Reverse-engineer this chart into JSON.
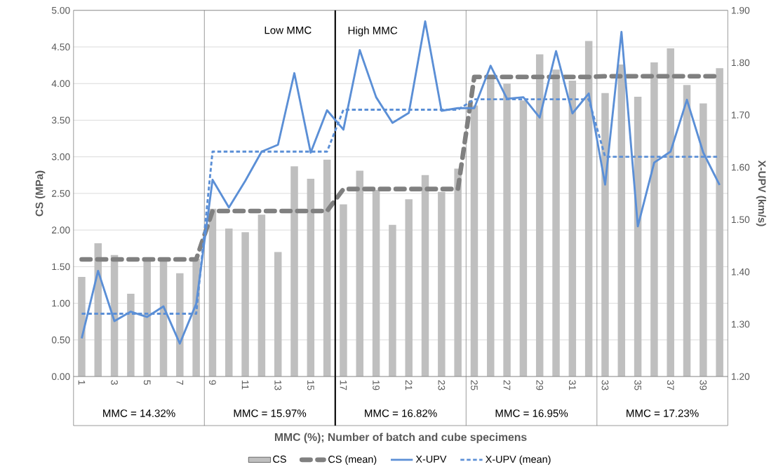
{
  "chart_data": {
    "type": "bar",
    "xlabel": "MMC (%); Number of batch and cube specimens",
    "ylabel": "CS (MPa)",
    "y2label": "X-UPV (km/s)",
    "categories": [
      "1",
      null,
      "3",
      null,
      "5",
      null,
      "7",
      null,
      "9",
      null,
      "11",
      null,
      "13",
      null,
      "15",
      null,
      "17",
      null,
      "19",
      null,
      "21",
      null,
      "23",
      null,
      "25",
      null,
      "27",
      null,
      "29",
      null,
      "31",
      null,
      "33",
      null,
      "35",
      null,
      "37",
      null,
      "39",
      null
    ],
    "series": [
      {
        "name": "CS",
        "color": "#bfbfbf",
        "values": [
          1.36,
          1.82,
          1.66,
          1.13,
          1.61,
          1.59,
          1.41,
          1.61,
          2.29,
          2.02,
          1.97,
          2.21,
          1.7,
          2.87,
          2.7,
          2.96,
          2.35,
          2.81,
          2.55,
          2.07,
          2.42,
          2.75,
          2.52,
          2.84,
          3.7,
          4.06,
          4.0,
          3.77,
          4.4,
          4.19,
          4.04,
          4.58,
          3.87,
          4.26,
          3.82,
          4.29,
          4.48,
          3.98,
          3.73,
          4.21
        ]
      },
      {
        "name": "CS  (mean)",
        "type": "line",
        "line_style": "dashed",
        "color": "#808080",
        "values": [
          1.6,
          1.6,
          1.6,
          1.6,
          1.6,
          1.6,
          1.6,
          1.6,
          2.26,
          2.26,
          2.26,
          2.26,
          2.26,
          2.26,
          2.26,
          2.26,
          2.56,
          2.56,
          2.56,
          2.56,
          2.56,
          2.56,
          2.56,
          2.56,
          4.09,
          4.09,
          4.09,
          4.09,
          4.09,
          4.09,
          4.09,
          4.09,
          4.1,
          4.1,
          4.1,
          4.1,
          4.1,
          4.1,
          4.1,
          4.1
        ]
      },
      {
        "name": "X-UPV",
        "type": "line",
        "axis": "y2",
        "line_style": "solid",
        "color": "#5b8fd6",
        "values": [
          1.273,
          1.402,
          1.306,
          1.324,
          1.314,
          1.334,
          1.263,
          1.339,
          1.576,
          1.523,
          1.574,
          1.63,
          1.643,
          1.78,
          1.628,
          1.709,
          1.672,
          1.824,
          1.734,
          1.685,
          1.704,
          1.879,
          1.708,
          1.713,
          1.713,
          1.794,
          1.731,
          1.734,
          1.695,
          1.822,
          1.703,
          1.741,
          1.567,
          1.859,
          1.487,
          1.609,
          1.63,
          1.729,
          1.628,
          1.566
        ]
      },
      {
        "name": "X-UPV  (mean)",
        "type": "line",
        "axis": "y2",
        "line_style": "dashed",
        "color": "#5b8fd6",
        "values": [
          1.32,
          1.32,
          1.32,
          1.32,
          1.32,
          1.32,
          1.32,
          1.32,
          1.63,
          1.63,
          1.63,
          1.63,
          1.63,
          1.63,
          1.63,
          1.63,
          1.71,
          1.71,
          1.71,
          1.71,
          1.71,
          1.71,
          1.71,
          1.71,
          1.73,
          1.73,
          1.73,
          1.73,
          1.73,
          1.73,
          1.73,
          1.73,
          1.62,
          1.62,
          1.62,
          1.62,
          1.62,
          1.62,
          1.62,
          1.62
        ]
      }
    ],
    "ylim": [
      0,
      5
    ],
    "yticks": [
      {
        "value": 0,
        "label": "0.00"
      },
      {
        "value": 0.5,
        "label": "0.50"
      },
      {
        "value": 1,
        "label": "1.00"
      },
      {
        "value": 1.5,
        "label": "1.50"
      },
      {
        "value": 2,
        "label": "2.00"
      },
      {
        "value": 2.5,
        "label": "2.50"
      },
      {
        "value": 3,
        "label": "3.00"
      },
      {
        "value": 3.5,
        "label": "3.50"
      },
      {
        "value": 4,
        "label": "4.00"
      },
      {
        "value": 4.5,
        "label": "4.50"
      },
      {
        "value": 5,
        "label": "5.00"
      }
    ],
    "y2lim": [
      1.2,
      1.9
    ],
    "y2ticks": [
      {
        "value": 1.2,
        "label": "1.20"
      },
      {
        "value": 1.3,
        "label": "1.30"
      },
      {
        "value": 1.4,
        "label": "1.40"
      },
      {
        "value": 1.5,
        "label": "1.50"
      },
      {
        "value": 1.6,
        "label": "1.60"
      },
      {
        "value": 1.7,
        "label": "1.70"
      },
      {
        "value": 1.8,
        "label": "1.80"
      },
      {
        "value": 1.9,
        "label": "1.90"
      }
    ],
    "grid": "y",
    "legend": "bottom",
    "marker": "none",
    "annotations": [
      "Low MMC",
      "High MMC",
      "MMC = 14.32%",
      "MMC = 15.97%",
      "MMC = 16.82%",
      "MMC = 16.95%",
      "MMC = 17.23%"
    ]
  }
}
